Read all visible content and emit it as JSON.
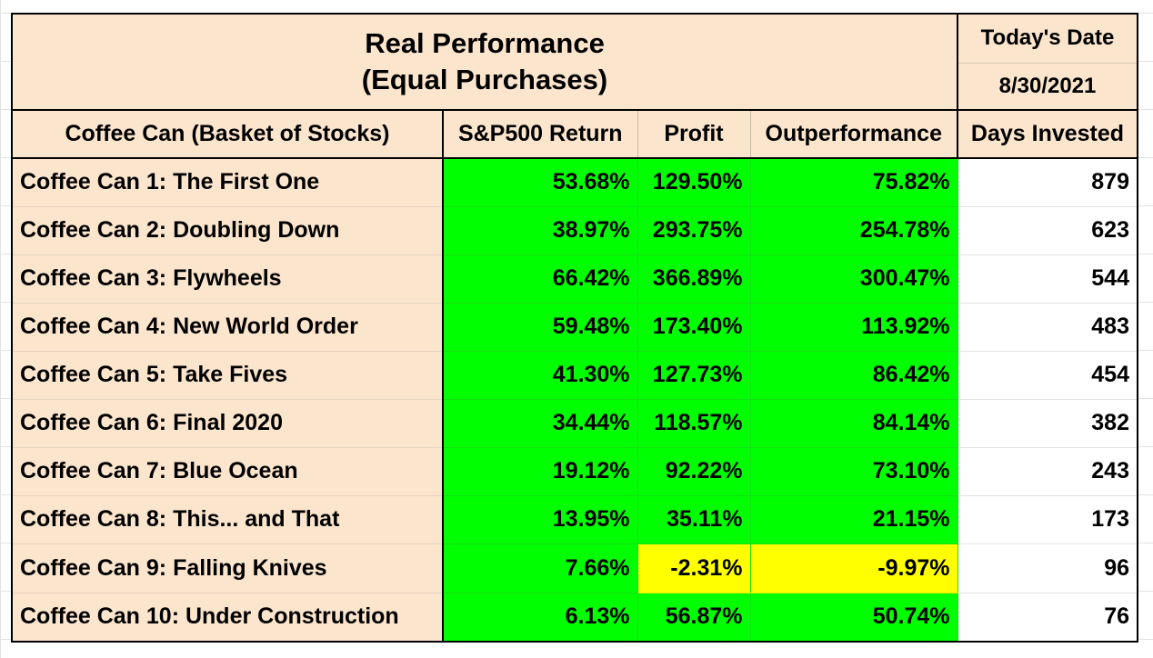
{
  "title_line1": "Real Performance",
  "title_line2": "(Equal Purchases)",
  "date": {
    "label": "Today's Date",
    "value": "8/30/2021"
  },
  "columns": [
    "Coffee Can (Basket of Stocks)",
    "S&P500 Return",
    "Profit",
    "Outperformance",
    "Days Invested"
  ],
  "colors": {
    "peach": "#fce5cd",
    "green": "#00ff00",
    "yellow": "#ffff00"
  },
  "rows": [
    {
      "name": "Coffee Can 1: The First One",
      "sp500": "53.68%",
      "profit": "129.50%",
      "out": "75.82%",
      "days": "879"
    },
    {
      "name": "Coffee Can 2: Doubling Down",
      "sp500": "38.97%",
      "profit": "293.75%",
      "out": "254.78%",
      "days": "623"
    },
    {
      "name": "Coffee Can 3: Flywheels",
      "sp500": "66.42%",
      "profit": "366.89%",
      "out": "300.47%",
      "days": "544"
    },
    {
      "name": "Coffee Can 4: New World Order",
      "sp500": "59.48%",
      "profit": "173.40%",
      "out": "113.92%",
      "days": "483"
    },
    {
      "name": "Coffee Can 5: Take Fives",
      "sp500": "41.30%",
      "profit": "127.73%",
      "out": "86.42%",
      "days": "454"
    },
    {
      "name": "Coffee Can 6: Final 2020",
      "sp500": "34.44%",
      "profit": "118.57%",
      "out": "84.14%",
      "days": "382"
    },
    {
      "name": "Coffee Can 7: Blue Ocean",
      "sp500": "19.12%",
      "profit": "92.22%",
      "out": "73.10%",
      "days": "243"
    },
    {
      "name": "Coffee Can 8: This... and That",
      "sp500": "13.95%",
      "profit": "35.11%",
      "out": "21.15%",
      "days": "173"
    },
    {
      "name": "Coffee Can 9: Falling Knives",
      "sp500": "7.66%",
      "profit": "-2.31%",
      "out": "-9.97%",
      "days": "96"
    },
    {
      "name": "Coffee Can 10: Under Construction",
      "sp500": "6.13%",
      "profit": "56.87%",
      "out": "50.74%",
      "days": "76"
    }
  ]
}
